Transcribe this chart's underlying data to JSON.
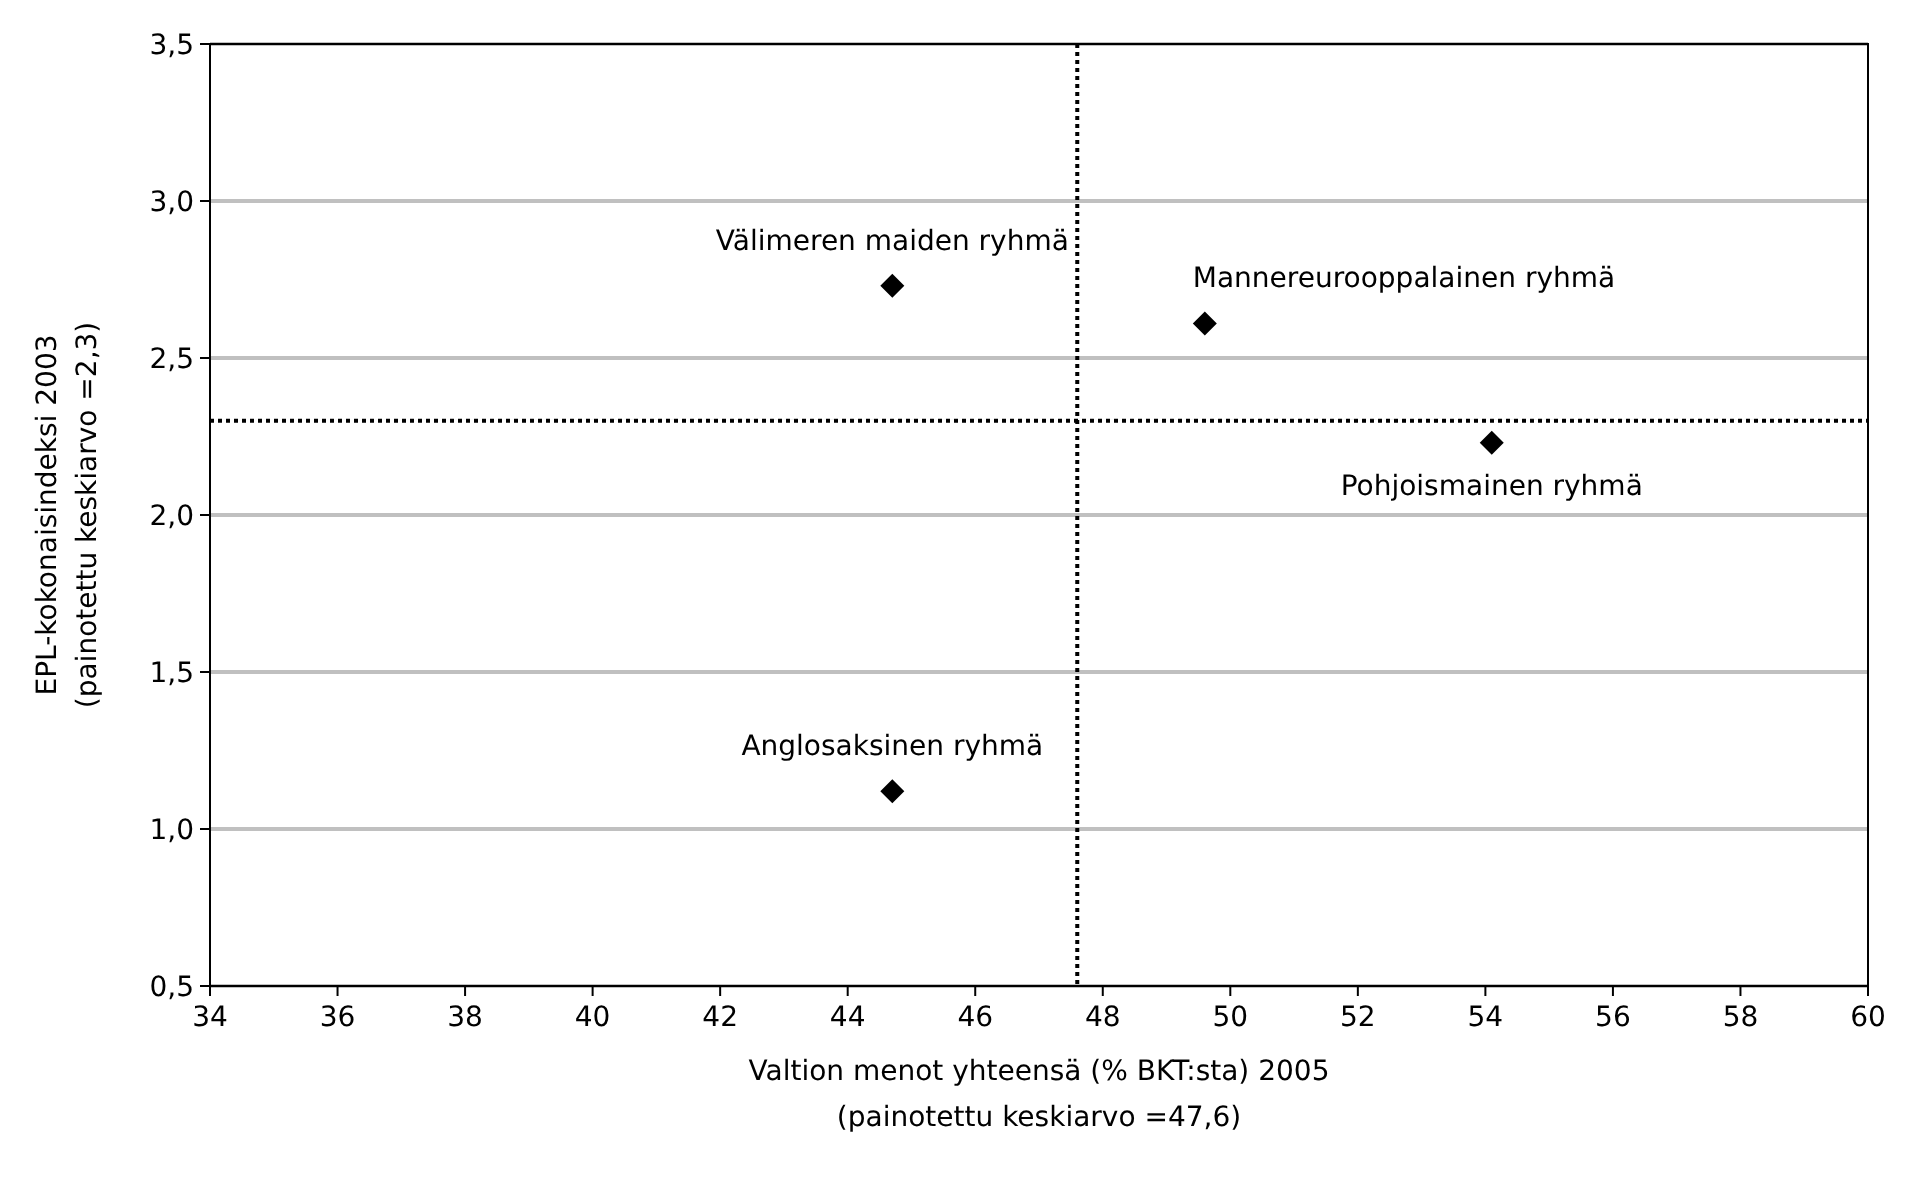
{
  "chart_data": {
    "type": "scatter",
    "xlabel": "Valtion menot yhteensä (% BKT:sta) 2005\n(painotettu keskiarvo =47,6)",
    "ylabel": "EPL-kokonaisindeksi 2003\n(painotettu keskiarvo =2,3)",
    "x": [
      44.7,
      49.6,
      54.1,
      44.7
    ],
    "series": [
      {
        "color": "#000000",
        "values": [
          2.73,
          2.61,
          2.23,
          1.12
        ]
      }
    ],
    "marker": "diamond",
    "grid": "y",
    "xlim": [
      34,
      60
    ],
    "xticks": [
      34,
      36,
      38,
      40,
      42,
      44,
      46,
      48,
      50,
      52,
      54,
      56,
      58,
      60
    ],
    "ylim": [
      0.5,
      3.5
    ],
    "yticks": [
      {
        "value": 0.5,
        "label": "0,5"
      },
      {
        "value": 1,
        "label": "1,0"
      },
      {
        "value": 1.5,
        "label": "1,5"
      },
      {
        "value": 2,
        "label": "2,0"
      },
      {
        "value": 2.5,
        "label": "2,5"
      },
      {
        "value": 3,
        "label": "3,0"
      },
      {
        "value": 3.5,
        "label": "3,5"
      }
    ],
    "ref_lines": [
      {
        "axis": "x",
        "value": 47.6,
        "line_style": "dotted",
        "color": "#000000"
      },
      {
        "axis": "y",
        "value": 2.3,
        "line_style": "dotted",
        "color": "#000000"
      }
    ],
    "annotations": [
      {
        "text": "Välimeren maiden ryhmä",
        "x": 44.7,
        "y": 2.73
      },
      {
        "text": "Mannereurooppalainen ryhmä",
        "x": 49.6,
        "y": 2.61
      },
      {
        "text": "Pohjoismainen ryhmä",
        "x": 54.1,
        "y": 2.23
      },
      {
        "text": "Anglosaksinen ryhmä",
        "x": 44.7,
        "y": 1.12
      }
    ]
  }
}
